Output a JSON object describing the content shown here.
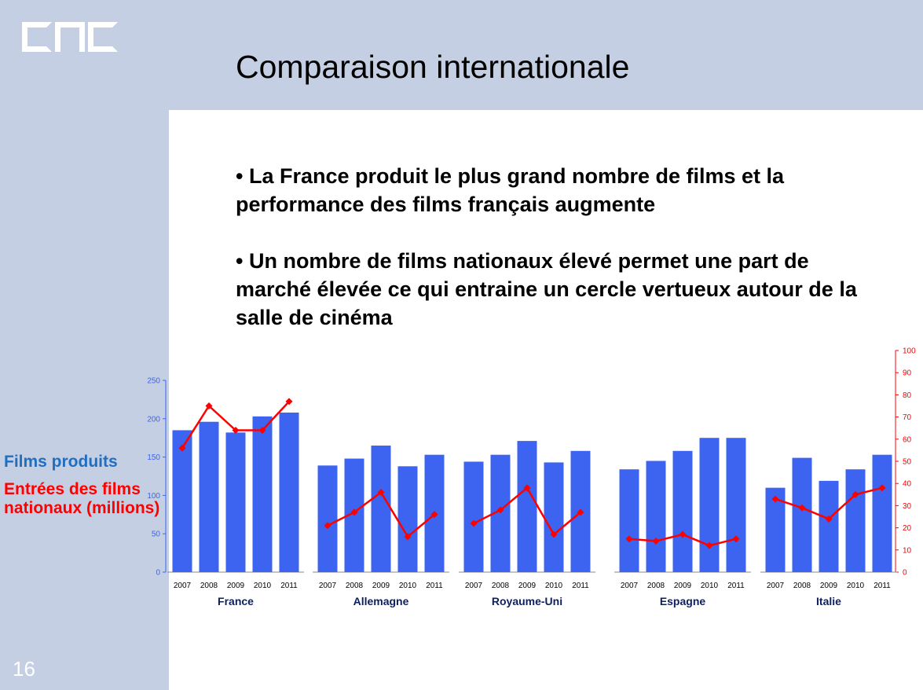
{
  "logo": {
    "text": "CNC"
  },
  "slide": {
    "title": "Comparaison internationale",
    "bullets": [
      "• La France produit le plus grand nombre de films et la performance des films français augmente",
      "• Un nombre de films nationaux élevé permet une part de marché élevée ce qui entraine un cercle vertueux autour de la salle de cinéma"
    ],
    "page_number": "16"
  },
  "legend": {
    "films": "Films produits",
    "entrees": "Entrées des films nationaux (millions)"
  },
  "colors": {
    "bars": "#3c64f0",
    "line": "#ff0000",
    "axis_left": "#3c64f0",
    "axis_right": "#ff0000"
  },
  "chart_data": {
    "type": "bar",
    "groups": [
      "France",
      "Allemagne",
      "Royaume-Uni",
      "Espagne",
      "Italie"
    ],
    "categories": [
      "2007",
      "2008",
      "2009",
      "2010",
      "2011"
    ],
    "left_axis": {
      "ylim": [
        0,
        250
      ],
      "ticks": [
        "0",
        "50",
        "100",
        "150",
        "200",
        "250"
      ]
    },
    "right_axis": {
      "ylim": [
        0,
        100
      ],
      "ticks": [
        "0",
        "10",
        "20",
        "30",
        "40",
        "50",
        "60",
        "70",
        "80",
        "90",
        "100"
      ]
    },
    "series": [
      {
        "name": "Films produits",
        "type": "bar",
        "axis": "left",
        "values": [
          [
            185,
            196,
            182,
            203,
            208
          ],
          [
            139,
            148,
            165,
            138,
            153
          ],
          [
            144,
            153,
            171,
            143,
            158
          ],
          [
            134,
            145,
            158,
            175,
            175
          ],
          [
            110,
            149,
            119,
            134,
            153
          ]
        ]
      },
      {
        "name": "Entrées des films nationaux (millions)",
        "type": "line",
        "axis": "right",
        "values": [
          [
            56,
            75,
            64,
            64,
            77
          ],
          [
            21,
            27,
            36,
            16,
            26
          ],
          [
            22,
            28,
            38,
            17,
            27
          ],
          [
            15,
            14,
            17,
            12,
            15
          ],
          [
            33,
            29,
            24,
            35,
            38
          ]
        ]
      }
    ],
    "grid": false
  }
}
